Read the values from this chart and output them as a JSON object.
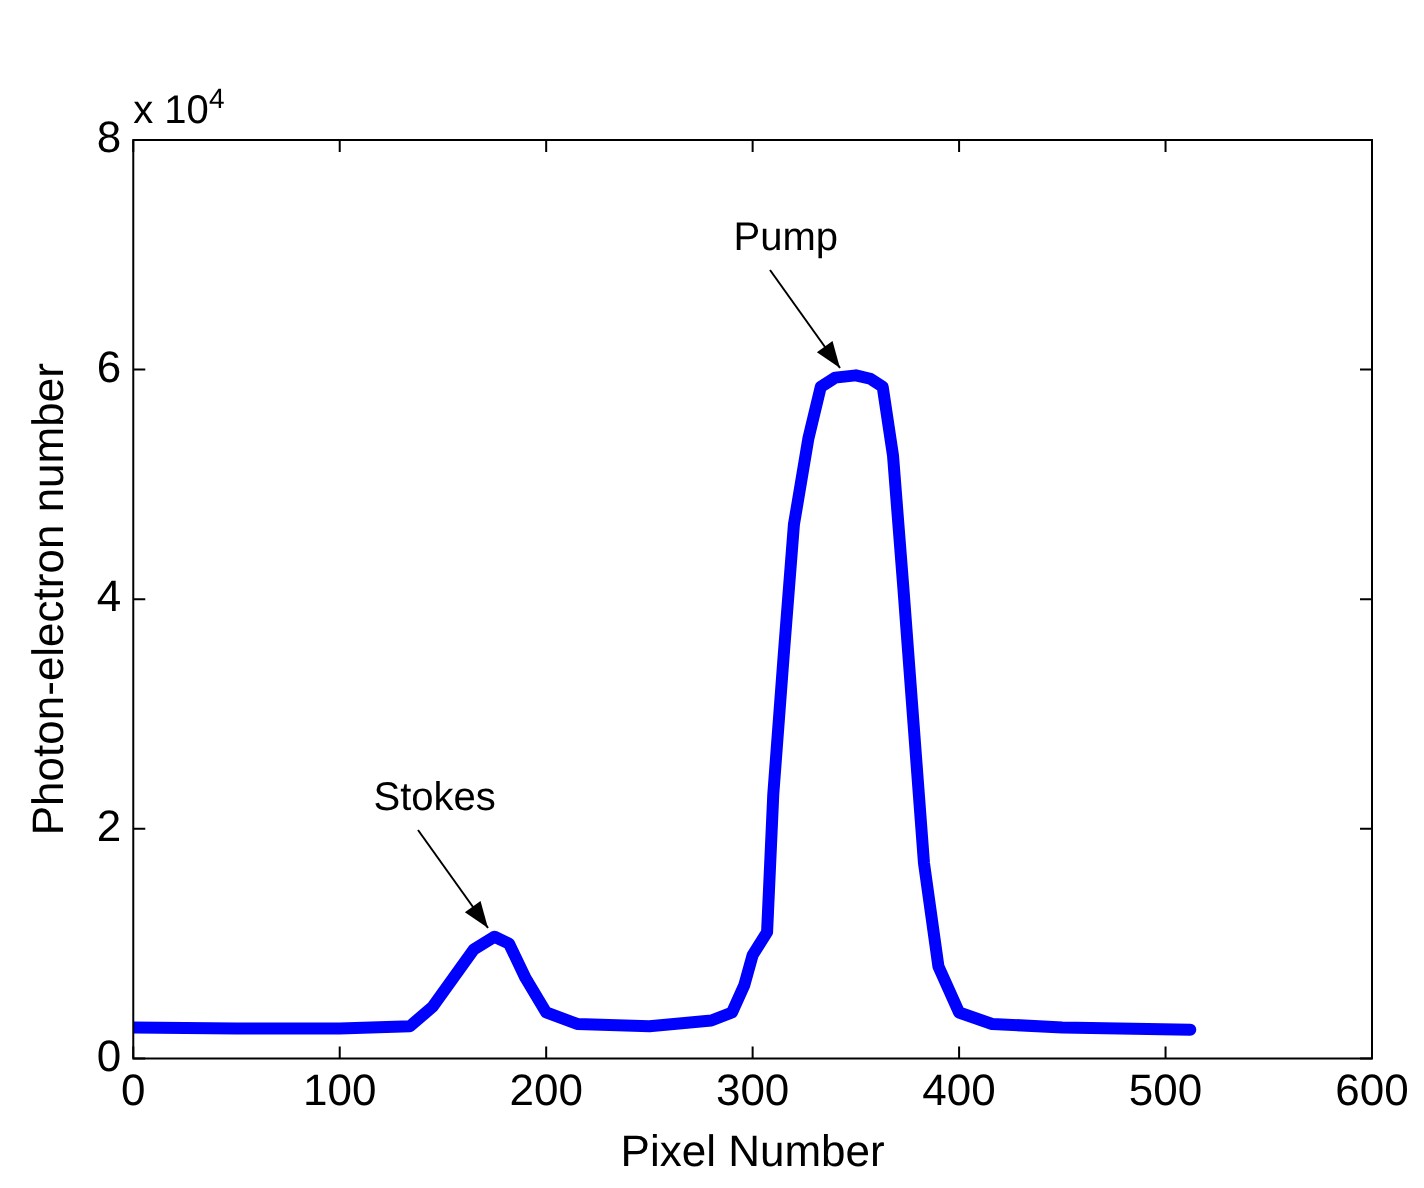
{
  "chart_data": {
    "type": "line",
    "xlabel": "Pixel Number",
    "ylabel": "Photon-electron number",
    "annotations": [
      "x 10$^{4}$",
      {
        "text": "Stokes",
        "x": 175,
        "y": 1.06
      },
      {
        "text": "Pump",
        "x": 345,
        "y": 5.95
      }
    ],
    "xlim": [
      0,
      600
    ],
    "xticks": [
      0,
      100,
      200,
      300,
      400,
      500,
      600
    ],
    "ylim": [
      0,
      8
    ],
    "yticks": [
      0,
      2,
      4,
      6,
      8
    ],
    "marker": "none",
    "line_style": "solid",
    "legend": false,
    "series": [
      {
        "color": "#0000ff",
        "x": [
          0,
          50,
          100,
          134,
          145,
          155,
          165,
          175,
          182,
          190,
          200,
          215,
          250,
          280,
          290,
          296,
          300,
          307,
          310,
          315,
          320,
          327,
          333,
          340,
          350,
          357,
          363,
          368,
          373,
          378,
          383,
          390,
          400,
          416,
          450,
          512
        ],
        "values": [
          0.27,
          0.26,
          0.26,
          0.28,
          0.45,
          0.7,
          0.95,
          1.06,
          1.0,
          0.7,
          0.4,
          0.3,
          0.28,
          0.33,
          0.4,
          0.64,
          0.9,
          1.1,
          2.3,
          3.5,
          4.65,
          5.4,
          5.85,
          5.93,
          5.95,
          5.92,
          5.85,
          5.25,
          4.1,
          2.9,
          1.7,
          0.8,
          0.4,
          0.3,
          0.27,
          0.25
        ]
      }
    ]
  }
}
